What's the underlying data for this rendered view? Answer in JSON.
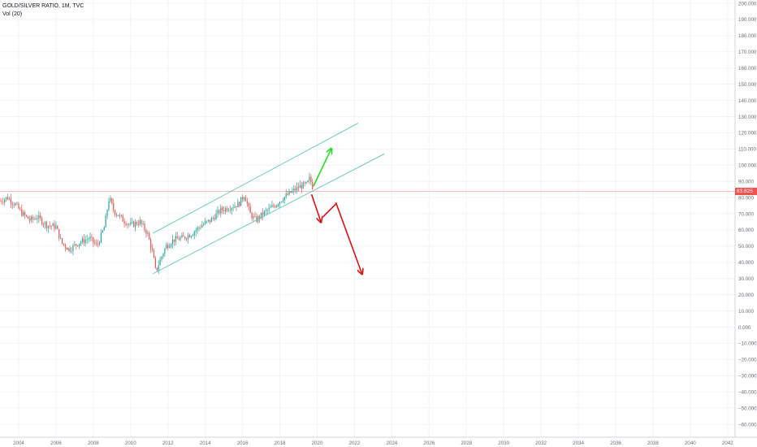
{
  "legend": {
    "title": "GOLD/SILVER RATIO, 1M, TVC",
    "volume": "Vol (20)"
  },
  "colors": {
    "background": "#ffffff",
    "grid": "#f0f3fa",
    "axis_text": "#6a6d78",
    "up": "#26a69a",
    "down": "#ef5350",
    "channel": "#5ec8b5",
    "arrow_up": "#22dd22",
    "arrow_down": "#dd1111",
    "price_line": "#f4a6a6"
  },
  "chart_data": {
    "type": "candlestick",
    "title": "GOLD/SILVER RATIO, 1M, TVC",
    "x_range": [
      2003.0,
      2042.4
    ],
    "y_range": [
      -68,
      202
    ],
    "x_ticks": [
      "2004",
      "2006",
      "2008",
      "2010",
      "2012",
      "2014",
      "2016",
      "2018",
      "2020",
      "2022",
      "2024",
      "2026",
      "2028",
      "2030",
      "2032",
      "2034",
      "2036",
      "2038",
      "2040",
      "2042"
    ],
    "y_ticks": [
      "200.000",
      "190.000",
      "180.000",
      "170.000",
      "160.000",
      "150.000",
      "140.000",
      "130.000",
      "120.000",
      "110.000",
      "100.000",
      "90.000",
      "80.000",
      "70.000",
      "60.000",
      "50.000",
      "40.000",
      "30.000",
      "20.000",
      "10.000",
      "0.000",
      "−10.000",
      "−20.000",
      "−30.000",
      "−40.000",
      "−50.000",
      "−60.000"
    ],
    "last_price": "83.825",
    "last_price_value": 83.825,
    "series_anchor_points": [
      [
        2003.0,
        78
      ],
      [
        2003.4,
        80
      ],
      [
        2003.8,
        76
      ],
      [
        2004.2,
        70
      ],
      [
        2004.6,
        66
      ],
      [
        2005.0,
        68
      ],
      [
        2005.5,
        63
      ],
      [
        2006.0,
        62
      ],
      [
        2006.3,
        52
      ],
      [
        2006.7,
        48
      ],
      [
        2007.2,
        52
      ],
      [
        2007.8,
        55
      ],
      [
        2008.2,
        50
      ],
      [
        2008.6,
        62
      ],
      [
        2008.85,
        80
      ],
      [
        2009.1,
        72
      ],
      [
        2009.6,
        66
      ],
      [
        2010.0,
        63
      ],
      [
        2010.5,
        65
      ],
      [
        2010.9,
        58
      ],
      [
        2011.2,
        45
      ],
      [
        2011.35,
        34
      ],
      [
        2011.6,
        42
      ],
      [
        2011.9,
        50
      ],
      [
        2012.3,
        54
      ],
      [
        2012.8,
        55
      ],
      [
        2013.3,
        58
      ],
      [
        2013.8,
        63
      ],
      [
        2014.3,
        66
      ],
      [
        2014.8,
        72
      ],
      [
        2015.3,
        74
      ],
      [
        2015.8,
        76
      ],
      [
        2016.1,
        82
      ],
      [
        2016.4,
        70
      ],
      [
        2016.7,
        66
      ],
      [
        2017.2,
        71
      ],
      [
        2017.7,
        75
      ],
      [
        2018.2,
        80
      ],
      [
        2018.7,
        84
      ],
      [
        2019.1,
        87
      ],
      [
        2019.45,
        88
      ],
      [
        2019.6,
        92
      ],
      [
        2019.8,
        85
      ]
    ],
    "channel": {
      "upper": [
        [
          2011.2,
          58
        ],
        [
          2022.2,
          126
        ]
      ],
      "lower": [
        [
          2011.2,
          33
        ],
        [
          2023.6,
          107
        ]
      ]
    },
    "arrows": {
      "up": [
        [
          2019.8,
          87
        ],
        [
          2020.75,
          110
        ]
      ],
      "down_short": [
        [
          2019.7,
          82
        ],
        [
          2020.2,
          65
        ]
      ],
      "down_bounce": [
        [
          2020.3,
          68
        ],
        [
          2021.0,
          76
        ]
      ],
      "down_long": [
        [
          2021.0,
          77
        ],
        [
          2022.4,
          33
        ]
      ]
    }
  }
}
